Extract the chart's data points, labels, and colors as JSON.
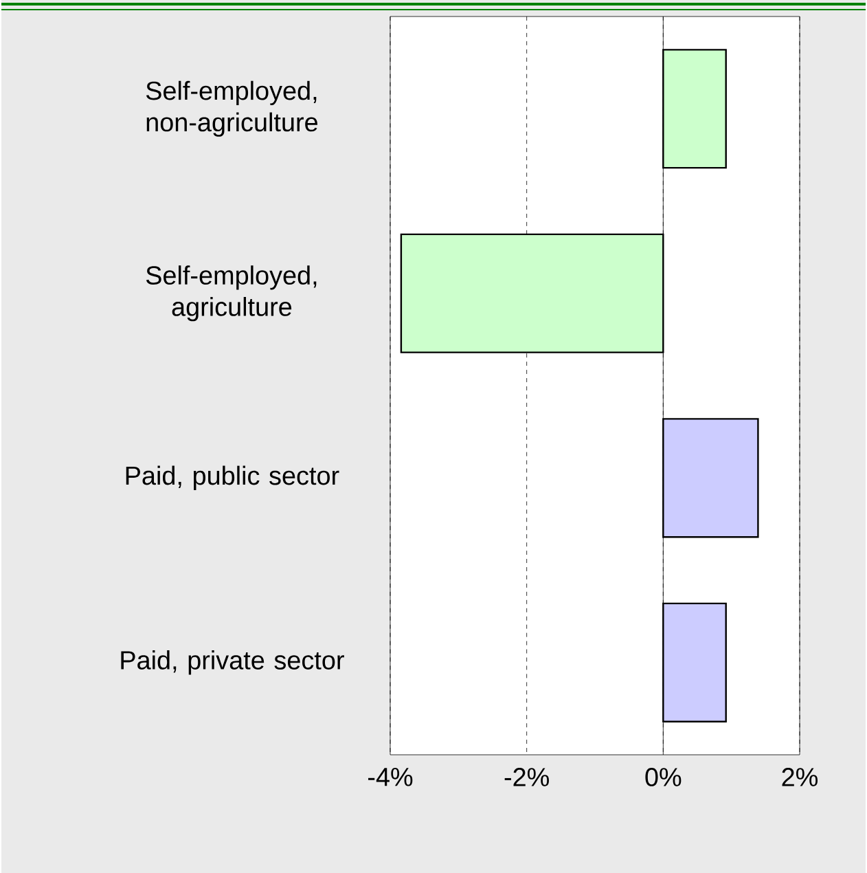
{
  "chart_data": {
    "type": "bar",
    "orientation": "horizontal",
    "categories": [
      "Self-employed, non-agriculture",
      "Self-employed, agriculture",
      "Paid, public sector",
      "Paid, private sector"
    ],
    "values": [
      0.92,
      -3.84,
      1.39,
      0.92
    ],
    "colors": [
      "#ccffcc",
      "#ccffcc",
      "#ccccff",
      "#ccccff"
    ],
    "xlim": [
      -4,
      2
    ],
    "xticks": [
      {
        "value": -4,
        "label": "-4%"
      },
      {
        "value": -2,
        "label": "-2%"
      },
      {
        "value": 0,
        "label": "0%"
      },
      {
        "value": 2,
        "label": "2%"
      }
    ],
    "grid": "x",
    "ref_lines": [
      {
        "axis": "x",
        "value": 0,
        "line_style": "solid"
      }
    ]
  }
}
